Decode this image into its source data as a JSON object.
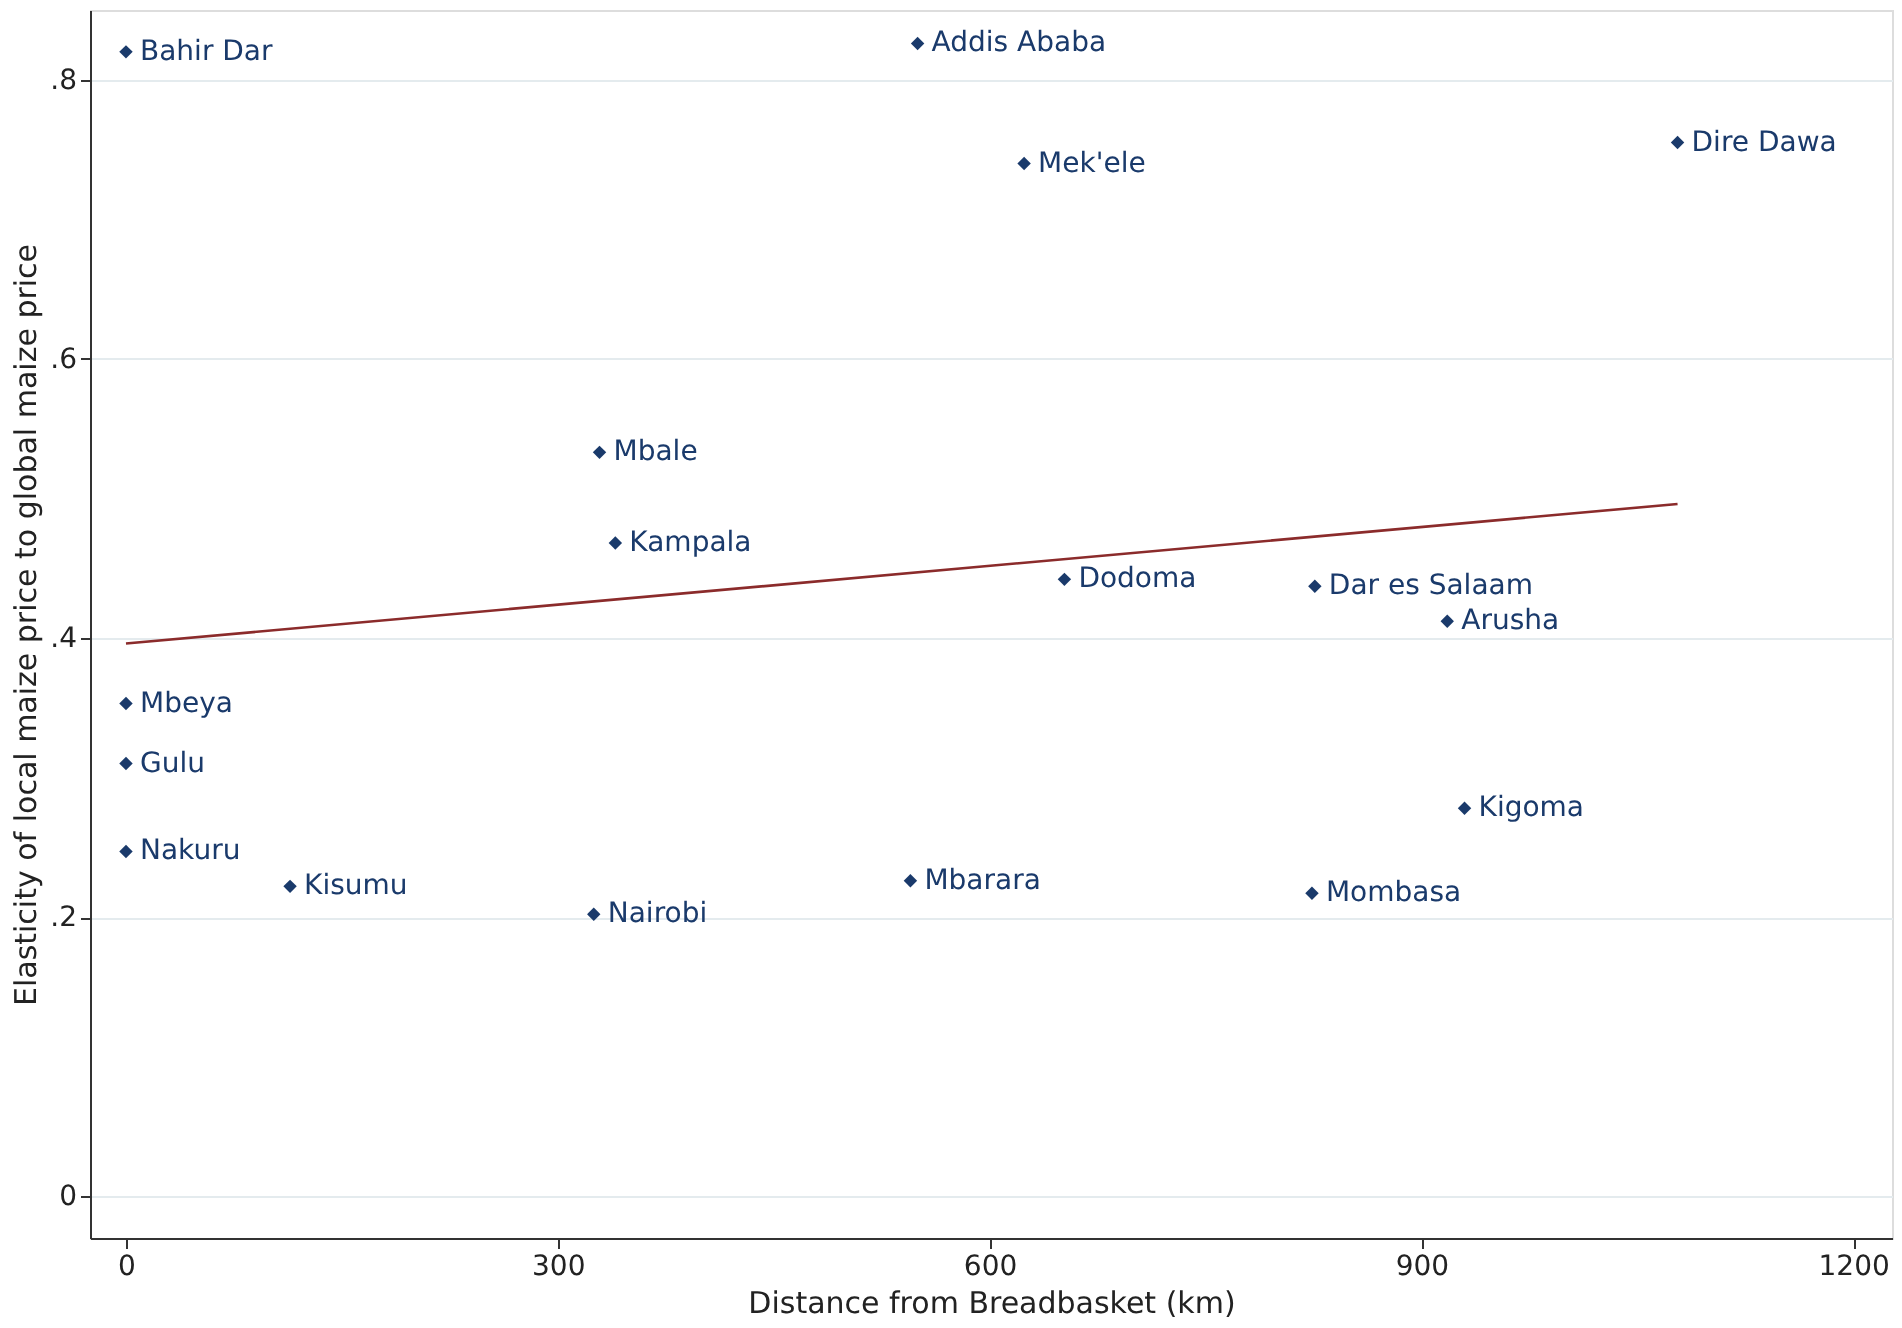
{
  "chart_data": {
    "type": "scatter",
    "xlabel": "Distance from Breadbasket (km)",
    "ylabel": "Elasticity of local maize price to global maize price",
    "xlim": [
      -25,
      1227
    ],
    "ylim": [
      -0.03,
      0.85
    ],
    "xticks": [
      0,
      300,
      600,
      900,
      1200
    ],
    "yticks": [
      0,
      {
        "value": 0.2,
        "label": ".2"
      },
      {
        "value": 0.4,
        "label": ".4"
      },
      {
        "value": 0.6,
        "label": ".6"
      },
      {
        "value": 0.8,
        "label": ".8"
      }
    ],
    "grid": "y",
    "marker": "diamond",
    "series": [
      {
        "type": "scatter",
        "color": "#1a3a6b",
        "x": [
          0,
          550,
          624,
          1078,
          329,
          340,
          652,
          826,
          918,
          0,
          0,
          0,
          114,
          325,
          545,
          824,
          930
        ],
        "values": [
          0.82,
          0.826,
          0.74,
          0.755,
          0.533,
          0.468,
          0.442,
          0.437,
          0.412,
          0.353,
          0.31,
          0.247,
          0.222,
          0.202,
          0.226,
          0.217,
          0.278
        ]
      },
      {
        "type": "line",
        "color": "#8b2b2b",
        "line_style": "solid",
        "marker": "none",
        "x": [
          0,
          1078
        ],
        "values": [
          0.396,
          0.496
        ]
      }
    ],
    "annotations": [
      {
        "text": "Bahir Dar",
        "x": 0,
        "y": 0.82
      },
      {
        "text": "Addis Ababa",
        "x": 550,
        "y": 0.826
      },
      {
        "text": "Mek'ele",
        "x": 624,
        "y": 0.74
      },
      {
        "text": "Dire Dawa",
        "x": 1078,
        "y": 0.755
      },
      {
        "text": "Mbale",
        "x": 329,
        "y": 0.533
      },
      {
        "text": "Kampala",
        "x": 340,
        "y": 0.468
      },
      {
        "text": "Dodoma",
        "x": 652,
        "y": 0.442
      },
      {
        "text": "Dar es Salaam",
        "x": 826,
        "y": 0.437
      },
      {
        "text": "Arusha",
        "x": 918,
        "y": 0.412
      },
      {
        "text": "Mbeya",
        "x": 0,
        "y": 0.353
      },
      {
        "text": "Gulu",
        "x": 0,
        "y": 0.31
      },
      {
        "text": "Nakuru",
        "x": 0,
        "y": 0.247
      },
      {
        "text": "Kisumu",
        "x": 114,
        "y": 0.222
      },
      {
        "text": "Nairobi",
        "x": 325,
        "y": 0.202
      },
      {
        "text": "Mbarara",
        "x": 545,
        "y": 0.226
      },
      {
        "text": "Mombasa",
        "x": 824,
        "y": 0.217
      },
      {
        "text": "Kigoma",
        "x": 930,
        "y": 0.278
      }
    ]
  }
}
